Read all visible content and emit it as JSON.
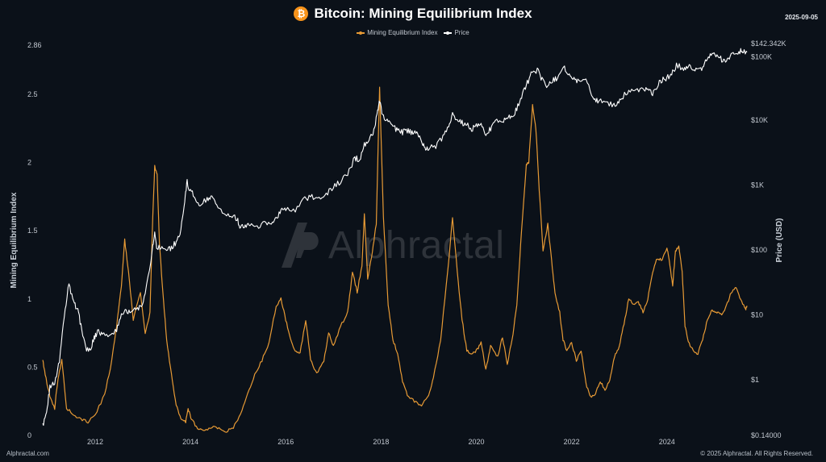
{
  "header": {
    "title": "Bitcoin: Mining Equilibrium Index",
    "date": "2025-09-05",
    "icon": "bitcoin-icon"
  },
  "legend": [
    {
      "label": "Mining Equilibrium Index",
      "color": "#e79a35"
    },
    {
      "label": "Price",
      "color": "#ffffff"
    }
  ],
  "watermark": {
    "text": "Alphractal",
    "icon": "alphractal-logo"
  },
  "footer": {
    "left": "Alphractal.com",
    "right": "© 2025 Alphractal. All Rights Reserved."
  },
  "chart_data": {
    "type": "line",
    "title": "Bitcoin: Mining Equilibrium Index",
    "x_range": [
      2010.9,
      2025.68
    ],
    "x_ticks": [
      "2012",
      "2014",
      "2016",
      "2018",
      "2020",
      "2022",
      "2024"
    ],
    "y_left": {
      "label": "Mining Equilibrium Index",
      "range": [
        0,
        2.86
      ],
      "ticks": [
        "0",
        "0.5",
        "1",
        "1.5",
        "2",
        "2.5",
        "2.86"
      ]
    },
    "y_right": {
      "label": "Price (USD)",
      "scale": "log",
      "range": [
        0.14,
        142342
      ],
      "ticks": [
        "$0.14000",
        "$1",
        "$10",
        "$100",
        "$1K",
        "$10K",
        "$100K",
        "$142.342K"
      ]
    },
    "grid": false,
    "legend_position": "top-center",
    "series": [
      {
        "name": "Mining Equilibrium Index",
        "axis": "left",
        "color": "#e79a35",
        "points": [
          [
            2010.9,
            0.55
          ],
          [
            2010.95,
            0.45
          ],
          [
            2011.05,
            0.28
          ],
          [
            2011.15,
            0.2
          ],
          [
            2011.22,
            0.42
          ],
          [
            2011.3,
            0.55
          ],
          [
            2011.4,
            0.2
          ],
          [
            2011.55,
            0.15
          ],
          [
            2011.7,
            0.12
          ],
          [
            2011.85,
            0.1
          ],
          [
            2012.0,
            0.15
          ],
          [
            2012.2,
            0.3
          ],
          [
            2012.35,
            0.55
          ],
          [
            2012.45,
            0.8
          ],
          [
            2012.55,
            1.1
          ],
          [
            2012.62,
            1.43
          ],
          [
            2012.7,
            1.2
          ],
          [
            2012.8,
            0.85
          ],
          [
            2012.95,
            1.05
          ],
          [
            2013.05,
            0.75
          ],
          [
            2013.15,
            0.9
          ],
          [
            2013.2,
            1.5
          ],
          [
            2013.25,
            1.97
          ],
          [
            2013.3,
            1.92
          ],
          [
            2013.35,
            1.4
          ],
          [
            2013.42,
            1.05
          ],
          [
            2013.5,
            0.7
          ],
          [
            2013.6,
            0.45
          ],
          [
            2013.7,
            0.22
          ],
          [
            2013.8,
            0.12
          ],
          [
            2013.9,
            0.1
          ],
          [
            2013.95,
            0.2
          ],
          [
            2014.02,
            0.12
          ],
          [
            2014.15,
            0.05
          ],
          [
            2014.3,
            0.04
          ],
          [
            2014.45,
            0.06
          ],
          [
            2014.6,
            0.05
          ],
          [
            2014.75,
            0.03
          ],
          [
            2014.9,
            0.06
          ],
          [
            2015.05,
            0.15
          ],
          [
            2015.2,
            0.3
          ],
          [
            2015.35,
            0.45
          ],
          [
            2015.5,
            0.55
          ],
          [
            2015.65,
            0.68
          ],
          [
            2015.8,
            0.95
          ],
          [
            2015.9,
            1.0
          ],
          [
            2016.0,
            0.85
          ],
          [
            2016.1,
            0.7
          ],
          [
            2016.2,
            0.62
          ],
          [
            2016.3,
            0.6
          ],
          [
            2016.42,
            0.85
          ],
          [
            2016.52,
            0.55
          ],
          [
            2016.65,
            0.45
          ],
          [
            2016.8,
            0.55
          ],
          [
            2016.9,
            0.75
          ],
          [
            2017.0,
            0.65
          ],
          [
            2017.15,
            0.8
          ],
          [
            2017.3,
            0.9
          ],
          [
            2017.4,
            1.2
          ],
          [
            2017.5,
            1.05
          ],
          [
            2017.6,
            1.25
          ],
          [
            2017.65,
            1.62
          ],
          [
            2017.72,
            1.15
          ],
          [
            2017.82,
            1.35
          ],
          [
            2017.9,
            1.55
          ],
          [
            2017.97,
            2.56
          ],
          [
            2018.05,
            1.6
          ],
          [
            2018.15,
            0.95
          ],
          [
            2018.25,
            0.7
          ],
          [
            2018.35,
            0.6
          ],
          [
            2018.45,
            0.4
          ],
          [
            2018.55,
            0.3
          ],
          [
            2018.7,
            0.25
          ],
          [
            2018.85,
            0.22
          ],
          [
            2019.0,
            0.3
          ],
          [
            2019.1,
            0.42
          ],
          [
            2019.25,
            0.7
          ],
          [
            2019.4,
            1.2
          ],
          [
            2019.5,
            1.6
          ],
          [
            2019.6,
            1.2
          ],
          [
            2019.7,
            0.85
          ],
          [
            2019.8,
            0.62
          ],
          [
            2019.9,
            0.6
          ],
          [
            2020.0,
            0.62
          ],
          [
            2020.1,
            0.68
          ],
          [
            2020.2,
            0.48
          ],
          [
            2020.3,
            0.65
          ],
          [
            2020.45,
            0.58
          ],
          [
            2020.55,
            0.72
          ],
          [
            2020.65,
            0.52
          ],
          [
            2020.75,
            0.7
          ],
          [
            2020.85,
            0.95
          ],
          [
            2020.95,
            1.5
          ],
          [
            2021.05,
            1.98
          ],
          [
            2021.1,
            2.0
          ],
          [
            2021.18,
            2.42
          ],
          [
            2021.25,
            2.25
          ],
          [
            2021.32,
            1.8
          ],
          [
            2021.4,
            1.35
          ],
          [
            2021.5,
            1.55
          ],
          [
            2021.58,
            1.28
          ],
          [
            2021.65,
            1.05
          ],
          [
            2021.75,
            0.9
          ],
          [
            2021.82,
            0.7
          ],
          [
            2021.9,
            0.62
          ],
          [
            2022.0,
            0.68
          ],
          [
            2022.1,
            0.55
          ],
          [
            2022.2,
            0.62
          ],
          [
            2022.3,
            0.38
          ],
          [
            2022.4,
            0.28
          ],
          [
            2022.5,
            0.3
          ],
          [
            2022.6,
            0.4
          ],
          [
            2022.7,
            0.33
          ],
          [
            2022.8,
            0.4
          ],
          [
            2022.9,
            0.58
          ],
          [
            2023.0,
            0.65
          ],
          [
            2023.1,
            0.82
          ],
          [
            2023.2,
            1.0
          ],
          [
            2023.3,
            0.96
          ],
          [
            2023.4,
            0.98
          ],
          [
            2023.5,
            0.9
          ],
          [
            2023.6,
            1.0
          ],
          [
            2023.7,
            1.2
          ],
          [
            2023.8,
            1.3
          ],
          [
            2023.9,
            1.28
          ],
          [
            2024.0,
            1.38
          ],
          [
            2024.05,
            1.28
          ],
          [
            2024.12,
            1.1
          ],
          [
            2024.18,
            1.35
          ],
          [
            2024.25,
            1.38
          ],
          [
            2024.32,
            1.2
          ],
          [
            2024.38,
            0.8
          ],
          [
            2024.45,
            0.68
          ],
          [
            2024.55,
            0.62
          ],
          [
            2024.65,
            0.6
          ],
          [
            2024.75,
            0.7
          ],
          [
            2024.85,
            0.85
          ],
          [
            2024.95,
            0.92
          ],
          [
            2025.05,
            0.9
          ],
          [
            2025.15,
            0.88
          ],
          [
            2025.25,
            0.95
          ],
          [
            2025.35,
            1.05
          ],
          [
            2025.45,
            1.08
          ],
          [
            2025.55,
            1.0
          ],
          [
            2025.65,
            0.92
          ],
          [
            2025.68,
            0.95
          ]
        ]
      },
      {
        "name": "Price",
        "axis": "right",
        "color": "#ffffff",
        "points": [
          [
            2010.9,
            0.2
          ],
          [
            2010.98,
            0.3
          ],
          [
            2011.05,
            0.8
          ],
          [
            2011.15,
            0.9
          ],
          [
            2011.25,
            2.0
          ],
          [
            2011.35,
            10
          ],
          [
            2011.45,
            30
          ],
          [
            2011.55,
            15
          ],
          [
            2011.62,
            13
          ],
          [
            2011.7,
            7
          ],
          [
            2011.8,
            3
          ],
          [
            2011.9,
            3
          ],
          [
            2011.98,
            4.5
          ],
          [
            2012.05,
            5.5
          ],
          [
            2012.15,
            5.0
          ],
          [
            2012.3,
            5.0
          ],
          [
            2012.45,
            6.0
          ],
          [
            2012.55,
            10
          ],
          [
            2012.65,
            12
          ],
          [
            2012.75,
            11
          ],
          [
            2012.85,
            12
          ],
          [
            2012.95,
            13
          ],
          [
            2013.05,
            20
          ],
          [
            2013.2,
            100
          ],
          [
            2013.25,
            180
          ],
          [
            2013.3,
            100
          ],
          [
            2013.4,
            120
          ],
          [
            2013.5,
            95
          ],
          [
            2013.6,
            110
          ],
          [
            2013.7,
            130
          ],
          [
            2013.8,
            200
          ],
          [
            2013.88,
            600
          ],
          [
            2013.93,
            1100
          ],
          [
            2014.0,
            800
          ],
          [
            2014.1,
            650
          ],
          [
            2014.2,
            500
          ],
          [
            2014.35,
            600
          ],
          [
            2014.45,
            620
          ],
          [
            2014.55,
            480
          ],
          [
            2014.7,
            380
          ],
          [
            2014.85,
            340
          ],
          [
            2014.98,
            300
          ],
          [
            2015.05,
            220
          ],
          [
            2015.15,
            250
          ],
          [
            2015.25,
            240
          ],
          [
            2015.4,
            230
          ],
          [
            2015.55,
            270
          ],
          [
            2015.7,
            240
          ],
          [
            2015.8,
            300
          ],
          [
            2015.9,
            420
          ],
          [
            2016.0,
            430
          ],
          [
            2016.2,
            410
          ],
          [
            2016.4,
            600
          ],
          [
            2016.55,
            650
          ],
          [
            2016.7,
            600
          ],
          [
            2016.85,
            700
          ],
          [
            2017.0,
            950
          ],
          [
            2017.15,
            1100
          ],
          [
            2017.3,
            1500
          ],
          [
            2017.45,
            2600
          ],
          [
            2017.55,
            2500
          ],
          [
            2017.65,
            4200
          ],
          [
            2017.75,
            5000
          ],
          [
            2017.85,
            7000
          ],
          [
            2017.93,
            14000
          ],
          [
            2017.97,
            19000
          ],
          [
            2018.05,
            11000
          ],
          [
            2018.15,
            9000
          ],
          [
            2018.25,
            8000
          ],
          [
            2018.35,
            7000
          ],
          [
            2018.45,
            6500
          ],
          [
            2018.55,
            6800
          ],
          [
            2018.65,
            6500
          ],
          [
            2018.75,
            6400
          ],
          [
            2018.85,
            5000
          ],
          [
            2018.92,
            3500
          ],
          [
            2019.0,
            3700
          ],
          [
            2019.15,
            3900
          ],
          [
            2019.3,
            5500
          ],
          [
            2019.42,
            8000
          ],
          [
            2019.5,
            12000
          ],
          [
            2019.6,
            10000
          ],
          [
            2019.7,
            9000
          ],
          [
            2019.8,
            8500
          ],
          [
            2019.9,
            7200
          ],
          [
            2020.0,
            8500
          ],
          [
            2020.1,
            9500
          ],
          [
            2020.2,
            5500
          ],
          [
            2020.3,
            7500
          ],
          [
            2020.4,
            9500
          ],
          [
            2020.55,
            9800
          ],
          [
            2020.65,
            11500
          ],
          [
            2020.75,
            11000
          ],
          [
            2020.85,
            15000
          ],
          [
            2020.95,
            23000
          ],
          [
            2021.05,
            35000
          ],
          [
            2021.15,
            50000
          ],
          [
            2021.28,
            60000
          ],
          [
            2021.38,
            42000
          ],
          [
            2021.5,
            33000
          ],
          [
            2021.6,
            40000
          ],
          [
            2021.7,
            45000
          ],
          [
            2021.85,
            63000
          ],
          [
            2021.95,
            48000
          ],
          [
            2022.05,
            42000
          ],
          [
            2022.15,
            40000
          ],
          [
            2022.3,
            42000
          ],
          [
            2022.45,
            22000
          ],
          [
            2022.55,
            20000
          ],
          [
            2022.7,
            20000
          ],
          [
            2022.85,
            17000
          ],
          [
            2022.95,
            16500
          ],
          [
            2023.05,
            22000
          ],
          [
            2023.2,
            28000
          ],
          [
            2023.35,
            27000
          ],
          [
            2023.5,
            30000
          ],
          [
            2023.6,
            29000
          ],
          [
            2023.7,
            26000
          ],
          [
            2023.8,
            34000
          ],
          [
            2023.9,
            42000
          ],
          [
            2024.0,
            45000
          ],
          [
            2024.1,
            50000
          ],
          [
            2024.2,
            70000
          ],
          [
            2024.35,
            63000
          ],
          [
            2024.45,
            68000
          ],
          [
            2024.55,
            60000
          ],
          [
            2024.65,
            58000
          ],
          [
            2024.75,
            65000
          ],
          [
            2024.85,
            95000
          ],
          [
            2024.95,
            97000
          ],
          [
            2025.05,
            102000
          ],
          [
            2025.15,
            85000
          ],
          [
            2025.25,
            84000
          ],
          [
            2025.35,
            104000
          ],
          [
            2025.45,
            108000
          ],
          [
            2025.55,
            118000
          ],
          [
            2025.62,
            112000
          ],
          [
            2025.68,
            111000
          ]
        ]
      }
    ]
  }
}
